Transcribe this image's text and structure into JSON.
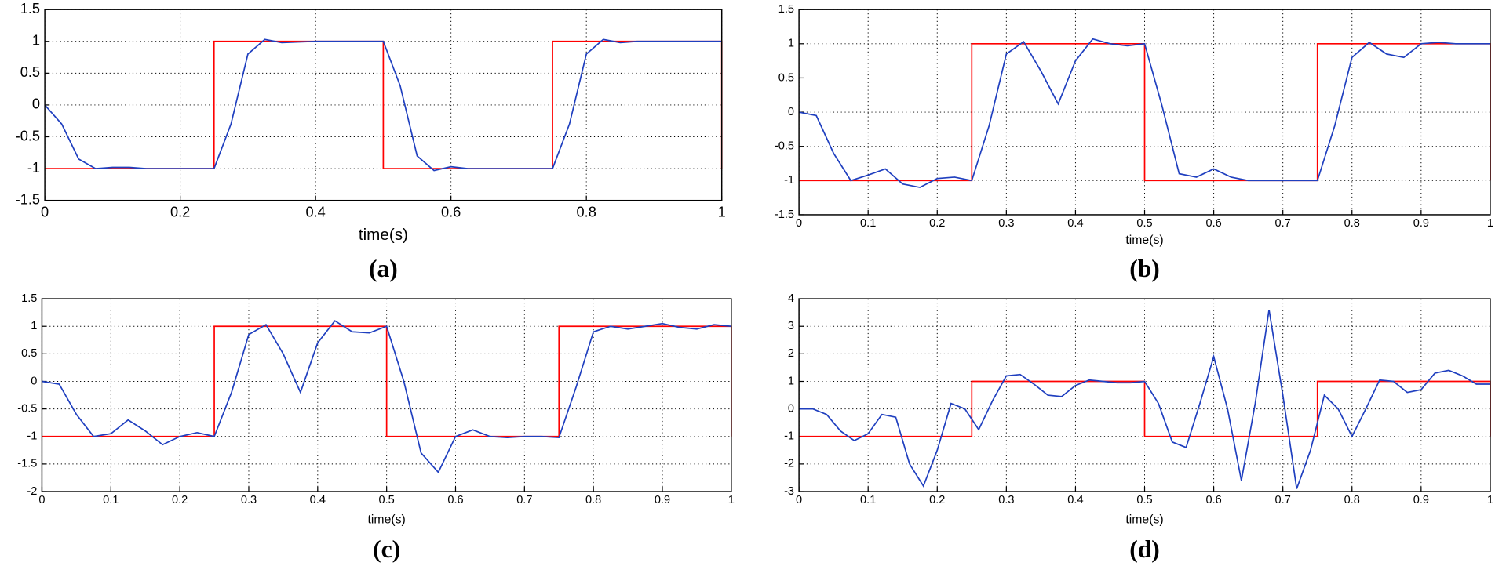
{
  "chart_data": [
    {
      "type": "line",
      "caption": "(a)",
      "xlabel": "time(s)",
      "grid": true,
      "xlim": [
        0,
        1
      ],
      "xticks": [
        0,
        0.2,
        0.4,
        0.6,
        0.8,
        1
      ],
      "ylim": [
        -1.5,
        1.5
      ],
      "yticks": [
        -1.5,
        -1,
        -0.5,
        0,
        0.5,
        1,
        1.5
      ],
      "series": [
        {
          "color": "#ff0000",
          "x": [
            0,
            0.25,
            0.25,
            0.5,
            0.5,
            0.75,
            0.75,
            1,
            1
          ],
          "values": [
            -1,
            -1,
            1,
            1,
            -1,
            -1,
            1,
            1,
            -1
          ]
        },
        {
          "color": "#1f3fbf",
          "x": [
            0,
            0.025,
            0.05,
            0.075,
            0.1,
            0.125,
            0.15,
            0.175,
            0.2,
            0.225,
            0.25,
            0.275,
            0.3,
            0.325,
            0.35,
            0.375,
            0.4,
            0.425,
            0.45,
            0.475,
            0.5,
            0.525,
            0.55,
            0.575,
            0.6,
            0.625,
            0.65,
            0.675,
            0.7,
            0.725,
            0.75,
            0.775,
            0.8,
            0.825,
            0.85,
            0.875,
            0.9,
            0.925,
            0.95,
            0.975,
            1
          ],
          "values": [
            0,
            -0.3,
            -0.85,
            -1,
            -0.98,
            -0.98,
            -1,
            -1,
            -1,
            -1,
            -1,
            -0.3,
            0.8,
            1.03,
            0.98,
            0.99,
            1,
            1,
            1,
            1,
            1,
            0.3,
            -0.8,
            -1.03,
            -0.97,
            -1,
            -1,
            -1,
            -1,
            -1,
            -1,
            -0.3,
            0.8,
            1.03,
            0.98,
            1,
            1,
            1,
            1,
            1,
            1
          ]
        }
      ]
    },
    {
      "type": "line",
      "caption": "(b)",
      "xlabel": "time(s)",
      "grid": true,
      "xlim": [
        0,
        1
      ],
      "xticks": [
        0,
        0.1,
        0.2,
        0.3,
        0.4,
        0.5,
        0.6,
        0.7,
        0.8,
        0.9,
        1
      ],
      "ylim": [
        -1.5,
        1.5
      ],
      "yticks": [
        -1.5,
        -1,
        -0.5,
        0,
        0.5,
        1,
        1.5
      ],
      "series": [
        {
          "color": "#ff0000",
          "x": [
            0,
            0.25,
            0.25,
            0.5,
            0.5,
            0.75,
            0.75,
            1,
            1
          ],
          "values": [
            -1,
            -1,
            1,
            1,
            -1,
            -1,
            1,
            1,
            -1
          ]
        },
        {
          "color": "#1f3fbf",
          "x": [
            0,
            0.025,
            0.05,
            0.075,
            0.1,
            0.125,
            0.15,
            0.175,
            0.2,
            0.225,
            0.25,
            0.275,
            0.3,
            0.325,
            0.35,
            0.375,
            0.4,
            0.425,
            0.45,
            0.475,
            0.5,
            0.525,
            0.55,
            0.575,
            0.6,
            0.625,
            0.65,
            0.675,
            0.7,
            0.725,
            0.75,
            0.775,
            0.8,
            0.825,
            0.85,
            0.875,
            0.9,
            0.925,
            0.95,
            0.975,
            1
          ],
          "values": [
            0,
            -0.05,
            -0.6,
            -1,
            -0.92,
            -0.83,
            -1.05,
            -1.1,
            -0.97,
            -0.95,
            -1,
            -0.2,
            0.85,
            1.03,
            0.6,
            0.12,
            0.75,
            1.07,
            1,
            0.97,
            1,
            0.1,
            -0.9,
            -0.95,
            -0.83,
            -0.95,
            -1,
            -1,
            -1,
            -1,
            -1,
            -0.2,
            0.8,
            1.02,
            0.85,
            0.8,
            1,
            1.02,
            1,
            1,
            1
          ]
        }
      ]
    },
    {
      "type": "line",
      "caption": "(c)",
      "xlabel": "time(s)",
      "grid": true,
      "xlim": [
        0,
        1
      ],
      "xticks": [
        0,
        0.1,
        0.2,
        0.3,
        0.4,
        0.5,
        0.6,
        0.7,
        0.8,
        0.9,
        1
      ],
      "ylim": [
        -2,
        1.5
      ],
      "yticks": [
        -2,
        -1.5,
        -1,
        -0.5,
        0,
        0.5,
        1,
        1.5
      ],
      "series": [
        {
          "color": "#ff0000",
          "x": [
            0,
            0.25,
            0.25,
            0.5,
            0.5,
            0.75,
            0.75,
            1,
            1
          ],
          "values": [
            -1,
            -1,
            1,
            1,
            -1,
            -1,
            1,
            1,
            -1
          ]
        },
        {
          "color": "#1f3fbf",
          "x": [
            0,
            0.025,
            0.05,
            0.075,
            0.1,
            0.125,
            0.15,
            0.175,
            0.2,
            0.225,
            0.25,
            0.275,
            0.3,
            0.325,
            0.35,
            0.375,
            0.4,
            0.425,
            0.45,
            0.475,
            0.5,
            0.525,
            0.55,
            0.575,
            0.6,
            0.625,
            0.65,
            0.675,
            0.7,
            0.725,
            0.75,
            0.775,
            0.8,
            0.825,
            0.85,
            0.875,
            0.9,
            0.925,
            0.95,
            0.975,
            1
          ],
          "values": [
            0,
            -0.05,
            -0.6,
            -1,
            -0.95,
            -0.7,
            -0.9,
            -1.15,
            -1,
            -0.93,
            -1,
            -0.2,
            0.85,
            1.03,
            0.5,
            -0.2,
            0.7,
            1.1,
            0.9,
            0.88,
            1,
            0,
            -1.3,
            -1.65,
            -1,
            -0.88,
            -1,
            -1.02,
            -1,
            -1,
            -1.02,
            -0.1,
            0.9,
            1,
            0.95,
            1,
            1.05,
            0.98,
            0.95,
            1.03,
            1
          ]
        }
      ]
    },
    {
      "type": "line",
      "caption": "(d)",
      "xlabel": "time(s)",
      "grid": true,
      "xlim": [
        0,
        1
      ],
      "xticks": [
        0,
        0.1,
        0.2,
        0.3,
        0.4,
        0.5,
        0.6,
        0.7,
        0.8,
        0.9,
        1
      ],
      "ylim": [
        -3,
        4
      ],
      "yticks": [
        -3,
        -2,
        -1,
        0,
        1,
        2,
        3,
        4
      ],
      "series": [
        {
          "color": "#ff0000",
          "x": [
            0,
            0.25,
            0.25,
            0.5,
            0.5,
            0.75,
            0.75,
            1,
            1
          ],
          "values": [
            -1,
            -1,
            1,
            1,
            -1,
            -1,
            1,
            1,
            -1
          ]
        },
        {
          "color": "#1f3fbf",
          "x": [
            0,
            0.02,
            0.04,
            0.06,
            0.08,
            0.1,
            0.12,
            0.14,
            0.16,
            0.18,
            0.2,
            0.22,
            0.24,
            0.26,
            0.28,
            0.3,
            0.32,
            0.34,
            0.36,
            0.38,
            0.4,
            0.42,
            0.44,
            0.46,
            0.48,
            0.5,
            0.52,
            0.54,
            0.56,
            0.58,
            0.6,
            0.62,
            0.64,
            0.66,
            0.68,
            0.7,
            0.72,
            0.74,
            0.76,
            0.78,
            0.8,
            0.82,
            0.84,
            0.86,
            0.88,
            0.9,
            0.92,
            0.94,
            0.96,
            0.98,
            1
          ],
          "values": [
            0,
            0,
            -0.2,
            -0.8,
            -1.15,
            -0.9,
            -0.2,
            -0.3,
            -2,
            -2.8,
            -1.5,
            0.2,
            0,
            -0.75,
            0.3,
            1.2,
            1.25,
            0.9,
            0.5,
            0.45,
            0.85,
            1.05,
            1,
            0.95,
            0.95,
            1,
            0.2,
            -1.2,
            -1.4,
            0.2,
            1.9,
            0,
            -2.6,
            0.2,
            3.6,
            0.5,
            -2.9,
            -1.5,
            0.5,
            0,
            -1,
            0,
            1.05,
            1,
            0.6,
            0.7,
            1.3,
            1.4,
            1.2,
            0.9,
            0.9
          ]
        }
      ]
    }
  ]
}
